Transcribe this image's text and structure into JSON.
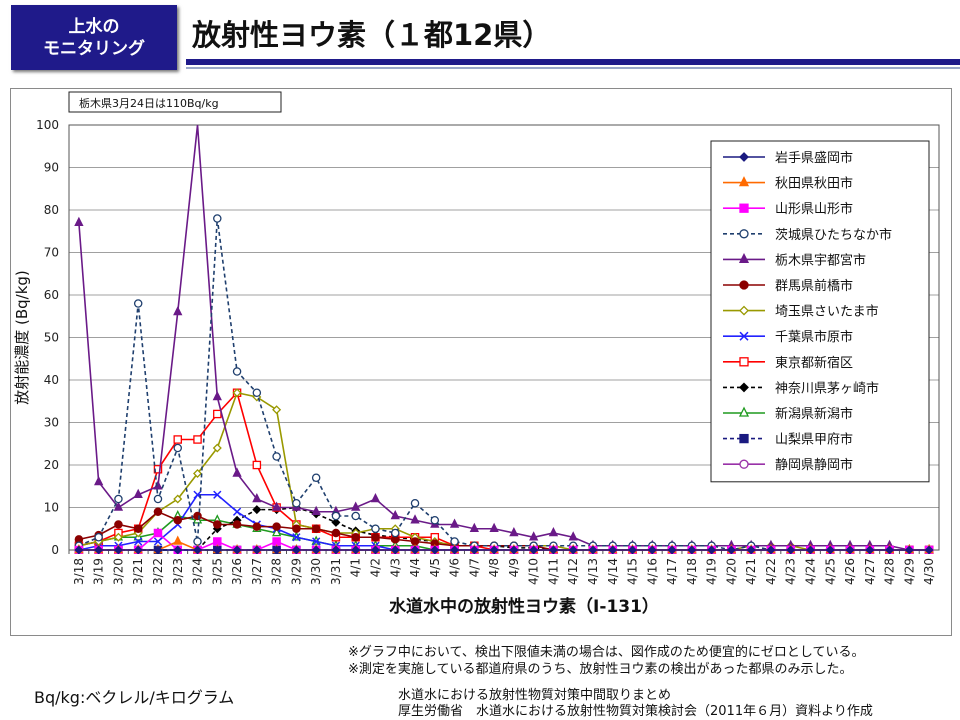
{
  "header": {
    "badge_line1": "上水の",
    "badge_line2": "モニタリング",
    "title": "放射性ヨウ素（１都12県）"
  },
  "chart_data": {
    "type": "line",
    "title": "",
    "annotation": "栃木県3月24日は110Bq/kg",
    "xlabel": "水道水中の放射性ヨウ素（I-131）",
    "ylabel": "放射能濃度 (Bq/kg)",
    "ylim": [
      0,
      100
    ],
    "yticks": [
      0,
      10,
      20,
      30,
      40,
      50,
      60,
      70,
      80,
      90,
      100
    ],
    "categories": [
      "3/18",
      "3/19",
      "3/20",
      "3/21",
      "3/22",
      "3/23",
      "3/24",
      "3/25",
      "3/26",
      "3/27",
      "3/28",
      "3/29",
      "3/30",
      "3/31",
      "4/1",
      "4/2",
      "4/3",
      "4/4",
      "4/5",
      "4/6",
      "4/7",
      "4/8",
      "4/9",
      "4/10",
      "4/11",
      "4/12",
      "4/13",
      "4/14",
      "4/15",
      "4/16",
      "4/17",
      "4/18",
      "4/19",
      "4/20",
      "4/21",
      "4/22",
      "4/23",
      "4/24",
      "4/25",
      "4/26",
      "4/27",
      "4/28",
      "4/29",
      "4/30"
    ],
    "series": [
      {
        "name": "岩手県盛岡市",
        "color": "#1a1a80",
        "dash": "",
        "marker": "diamond",
        "fill": true,
        "values": [
          0,
          0,
          0,
          0,
          0,
          0,
          0,
          0,
          0,
          0,
          0,
          0,
          0,
          0,
          0,
          0,
          0,
          0,
          0,
          0,
          0,
          0,
          0,
          0,
          0,
          0,
          0,
          0,
          0,
          0,
          0,
          0,
          0,
          0,
          0,
          0,
          0,
          0,
          0,
          0,
          0,
          0,
          0,
          0
        ]
      },
      {
        "name": "秋田県秋田市",
        "color": "#ff6a00",
        "dash": "",
        "marker": "triangle",
        "fill": true,
        "values": [
          0,
          0,
          0,
          0,
          0,
          2,
          0,
          0,
          0,
          0,
          0,
          0,
          0,
          0,
          0,
          0,
          0,
          0,
          0,
          0,
          0,
          0,
          0,
          0,
          0,
          0,
          0,
          0,
          0,
          0,
          0,
          0,
          0,
          0,
          0,
          0,
          0,
          0,
          0,
          0,
          0,
          0,
          0,
          0
        ]
      },
      {
        "name": "山形県山形市",
        "color": "#ff00ff",
        "dash": "",
        "marker": "square",
        "fill": true,
        "values": [
          0,
          0,
          0,
          0,
          4,
          0,
          0,
          2,
          0,
          0,
          2,
          0,
          0,
          0,
          0,
          0,
          0,
          0,
          0,
          0,
          0,
          0,
          0,
          0,
          0,
          0,
          0,
          0,
          0,
          0,
          0,
          0,
          0,
          0,
          0,
          0,
          0,
          0,
          0,
          0,
          0,
          0,
          0,
          0
        ]
      },
      {
        "name": "茨城県ひたちなか市",
        "color": "#1f3f6e",
        "dash": "4,3",
        "marker": "circle",
        "fill": false,
        "values": [
          1,
          3,
          12,
          58,
          12,
          24,
          2,
          78,
          42,
          37,
          22,
          11,
          17,
          8,
          8,
          5,
          4,
          11,
          7,
          2,
          1,
          1,
          1,
          1,
          1,
          1,
          1,
          1,
          1,
          1,
          1,
          1,
          1,
          0,
          1,
          0,
          0,
          0,
          0,
          0,
          0,
          0,
          0,
          0
        ]
      },
      {
        "name": "栃木県宇都宮市",
        "color": "#6a1a88",
        "dash": "",
        "marker": "triangle",
        "fill": true,
        "values": [
          77,
          16,
          10,
          13,
          15,
          56,
          110,
          36,
          18,
          12,
          10,
          10,
          9,
          9,
          10,
          12,
          8,
          7,
          6,
          6,
          5,
          5,
          4,
          3,
          4,
          3,
          1,
          1,
          1,
          1,
          1,
          1,
          1,
          1,
          1,
          1,
          1,
          1,
          1,
          1,
          1,
          1,
          0,
          0
        ]
      },
      {
        "name": "群馬県前橋市",
        "color": "#8b0000",
        "dash": "",
        "marker": "circle",
        "fill": true,
        "values": [
          2.5,
          3.5,
          6,
          5,
          9,
          7,
          8,
          6,
          6,
          5.5,
          5.5,
          5,
          5,
          4,
          3,
          3,
          2.5,
          2,
          1.5,
          1,
          1,
          1,
          1,
          1,
          0,
          0,
          0,
          0,
          0,
          0,
          0,
          0,
          0,
          0,
          0,
          0,
          0,
          0,
          0,
          0,
          0,
          0,
          0,
          0
        ]
      },
      {
        "name": "埼玉県さいたま市",
        "color": "#999900",
        "dash": "",
        "marker": "diamond",
        "fill": false,
        "values": [
          1,
          2,
          3,
          4,
          9,
          12,
          18,
          24,
          37,
          36,
          33,
          6,
          5,
          4,
          4,
          5,
          5,
          3,
          2,
          1,
          1,
          1,
          1,
          1,
          1,
          0,
          0,
          0,
          0,
          0,
          0,
          0,
          0,
          0,
          1,
          1,
          1,
          0,
          0,
          0,
          0,
          0,
          0,
          0
        ]
      },
      {
        "name": "千葉県市原市",
        "color": "#2222ff",
        "dash": "",
        "marker": "x",
        "fill": false,
        "values": [
          0,
          1,
          1,
          2,
          2,
          6,
          13,
          13,
          9,
          6,
          5,
          3,
          2,
          1,
          1,
          1,
          0,
          0,
          0,
          0,
          0,
          0,
          0,
          0,
          0,
          0,
          0,
          0,
          0,
          0,
          0,
          0,
          0,
          0,
          0,
          0,
          0,
          0,
          0,
          0,
          0,
          0,
          0,
          0
        ]
      },
      {
        "name": "東京都新宿区",
        "color": "#ff0000",
        "dash": "",
        "marker": "square",
        "fill": false,
        "values": [
          1,
          2,
          4,
          5,
          19,
          26,
          26,
          32,
          37,
          20,
          10,
          6,
          5,
          3,
          3,
          3,
          3,
          3,
          3,
          1,
          1,
          0,
          0,
          0,
          0,
          0,
          0,
          0,
          0,
          0,
          0,
          0,
          0,
          0,
          0,
          0,
          0,
          0,
          0,
          0,
          0,
          0,
          0,
          0
        ]
      },
      {
        "name": "神奈川県茅ヶ崎市",
        "color": "#000000",
        "dash": "4,3",
        "marker": "diamond",
        "fill": true,
        "values": [
          0,
          0,
          0,
          0,
          0,
          0,
          0,
          5,
          7,
          9.5,
          9.5,
          10,
          8.5,
          6.5,
          4.5,
          3.5,
          3,
          2.5,
          2,
          1,
          1,
          1,
          0.5,
          0.5,
          0,
          0,
          0,
          0,
          0,
          0,
          0,
          0,
          0,
          0,
          0,
          0,
          0,
          0,
          0,
          0,
          0,
          0,
          0,
          0
        ]
      },
      {
        "name": "新潟県新潟市",
        "color": "#1f9a1f",
        "dash": "",
        "marker": "triangle",
        "fill": false,
        "values": [
          1,
          2,
          3,
          3,
          4,
          8,
          7,
          7,
          6,
          5,
          4,
          3,
          2,
          1,
          1,
          1,
          1,
          1,
          0,
          0,
          0,
          0,
          0,
          0,
          0,
          0,
          0,
          0,
          0,
          0,
          0,
          0,
          0,
          0,
          0,
          0,
          0,
          0,
          0,
          0,
          0,
          0,
          0,
          0
        ]
      },
      {
        "name": "山梨県甲府市",
        "color": "#1a1a80",
        "dash": "4,3",
        "marker": "square",
        "fill": true,
        "values": [
          0,
          0,
          0,
          0,
          0,
          0,
          0,
          0,
          0,
          0,
          0,
          0,
          0,
          0,
          0,
          0,
          0,
          0,
          0,
          0,
          0,
          0,
          0,
          0,
          0,
          0,
          0,
          0,
          0,
          0,
          0,
          0,
          0,
          0,
          0,
          0,
          0,
          0,
          0,
          0,
          0,
          0,
          0,
          0
        ]
      },
      {
        "name": "静岡県静岡市",
        "color": "#9932a8",
        "dash": "",
        "marker": "circle",
        "fill": false,
        "values": [
          0,
          0,
          0,
          0,
          0,
          0,
          0,
          0,
          0,
          0,
          0,
          0,
          0,
          0,
          0,
          0,
          0,
          0,
          0,
          0,
          0,
          0,
          0,
          0,
          0,
          0,
          0,
          0,
          0,
          0,
          0,
          0,
          0,
          0,
          0,
          0,
          0,
          0,
          0,
          0,
          0,
          0,
          0,
          0
        ]
      }
    ],
    "legend": "right"
  },
  "notes": {
    "note1": "※グラフ中において、検出下限値未満の場合は、図作成のため便宜的にゼロとしている。",
    "note2": "※測定を実施している都道府県のうち、放射性ヨウ素の検出があった都県のみ示した。"
  },
  "footer": {
    "unit": "Bq/kg:ベクレル/キログラム",
    "source1": "水道水における放射性物質対策中間取りまとめ",
    "source2": "厚生労働省　水道水における放射性物質対策検討会（2011年６月）資料より作成"
  }
}
